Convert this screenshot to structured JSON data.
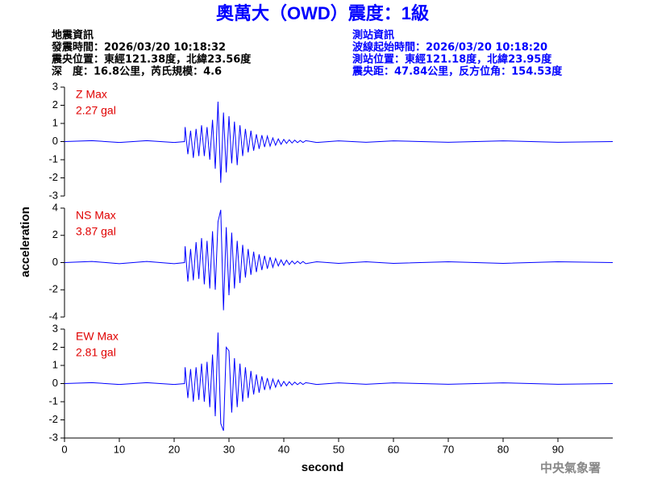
{
  "title": "奧萬大（OWD）震度：1級",
  "info_left": [
    "地震資訊",
    "發震時間：2026/03/20 10:18:32",
    "震央位置：東經121.38度，北緯23.56度",
    "深　度：16.8公里，芮氏規模：4.6"
  ],
  "info_right": [
    "測站資訊",
    "波線起始時間：2026/03/20 10:18:20",
    "測站位置：東經121.18度，北緯23.95度",
    "震央距：47.84公里，反方位角：154.53度"
  ],
  "y_label": "acceleration",
  "x_label": "second",
  "agency": "中央氣象署",
  "xlim": [
    0,
    100
  ],
  "xticks": [
    0,
    10,
    20,
    30,
    40,
    50,
    60,
    70,
    80,
    90
  ],
  "chart_data": [
    {
      "type": "line",
      "name": "Z Max",
      "max_label": "2.27 gal",
      "color": "#0000ff",
      "ylim": [
        -3,
        3
      ],
      "yticks": [
        -3,
        -2,
        -1,
        0,
        1,
        2,
        3
      ],
      "x": [
        0,
        5,
        10,
        15,
        20,
        21.9,
        22,
        22.5,
        23,
        23.5,
        24,
        24.5,
        25,
        25.5,
        26,
        26.5,
        27,
        27.5,
        28,
        28.5,
        29,
        29.5,
        30,
        30.5,
        31,
        31.5,
        32,
        32.5,
        33,
        33.5,
        34,
        34.5,
        35,
        35.5,
        36,
        36.5,
        37,
        37.5,
        38,
        38.5,
        39,
        39.5,
        40,
        40.5,
        41,
        41.5,
        42,
        42.5,
        43,
        43.5,
        44,
        46,
        50,
        55,
        60,
        70,
        80,
        90,
        100
      ],
      "values": [
        0,
        0.05,
        -0.05,
        0.05,
        -0.05,
        0,
        0.8,
        -0.7,
        0.6,
        -0.9,
        0.7,
        -0.8,
        0.9,
        -0.8,
        0.8,
        -1.0,
        1.2,
        -1.5,
        2.2,
        -2.27,
        1.6,
        -1.7,
        1.4,
        -1.2,
        1.1,
        -1.3,
        0.9,
        -0.8,
        0.7,
        -0.6,
        0.6,
        -0.5,
        0.4,
        -0.4,
        0.35,
        -0.3,
        0.3,
        -0.25,
        0.2,
        -0.2,
        0.15,
        -0.15,
        0.12,
        -0.1,
        0.1,
        -0.08,
        0.08,
        -0.06,
        0.06,
        -0.05,
        0.05,
        -0.05,
        0.04,
        -0.04,
        0.04,
        -0.04,
        0.04,
        -0.04,
        0
      ]
    },
    {
      "type": "line",
      "name": "NS Max",
      "max_label": "3.87 gal",
      "color": "#0000ff",
      "ylim": [
        -4,
        4
      ],
      "yticks": [
        -4,
        -2,
        0,
        2,
        4
      ],
      "x": [
        0,
        5,
        10,
        15,
        20,
        21.9,
        22,
        22.5,
        23,
        23.5,
        24,
        24.5,
        25,
        25.5,
        26,
        26.5,
        27,
        27.5,
        28,
        28.5,
        29,
        29.5,
        30,
        30.5,
        31,
        31.5,
        32,
        32.5,
        33,
        33.5,
        34,
        34.5,
        35,
        35.5,
        36,
        36.5,
        37,
        37.5,
        38,
        38.5,
        39,
        39.5,
        40,
        40.5,
        41,
        41.5,
        42,
        42.5,
        43,
        43.5,
        44,
        46,
        50,
        55,
        60,
        70,
        80,
        90,
        100
      ],
      "values": [
        0,
        0.08,
        -0.08,
        0.08,
        -0.08,
        0,
        1.2,
        -1.4,
        1.0,
        -1.3,
        1.5,
        -1.2,
        1.8,
        -1.6,
        1.6,
        -1.9,
        2.3,
        -2.0,
        3.0,
        3.87,
        -3.5,
        2.6,
        -2.4,
        2.2,
        -1.9,
        1.6,
        -1.5,
        1.3,
        -1.1,
        1.0,
        -0.9,
        0.8,
        -0.7,
        0.6,
        -0.55,
        0.5,
        -0.45,
        0.4,
        -0.35,
        0.3,
        -0.25,
        0.2,
        -0.2,
        0.18,
        -0.15,
        0.12,
        -0.1,
        0.1,
        -0.08,
        0.08,
        -0.08,
        0.06,
        -0.06,
        0.06,
        -0.06,
        0.06,
        -0.06,
        0.06,
        0
      ]
    },
    {
      "type": "line",
      "name": "EW Max",
      "max_label": "2.81 gal",
      "color": "#0000ff",
      "ylim": [
        -3,
        3
      ],
      "yticks": [
        -3,
        -2,
        -1,
        0,
        1,
        2,
        3
      ],
      "x": [
        0,
        5,
        10,
        15,
        20,
        21.9,
        22,
        22.5,
        23,
        23.5,
        24,
        24.5,
        25,
        25.5,
        26,
        26.5,
        27,
        27.5,
        28,
        28.5,
        29,
        29.5,
        30,
        30.5,
        31,
        31.5,
        32,
        32.5,
        33,
        33.5,
        34,
        34.5,
        35,
        35.5,
        36,
        36.5,
        37,
        37.5,
        38,
        38.5,
        39,
        39.5,
        40,
        40.5,
        41,
        41.5,
        42,
        42.5,
        43,
        43.5,
        44,
        46,
        50,
        55,
        60,
        70,
        80,
        90,
        100
      ],
      "values": [
        0,
        0.05,
        -0.05,
        0.05,
        -0.05,
        0,
        0.9,
        -0.8,
        0.8,
        -1.0,
        0.9,
        -0.9,
        1.1,
        -1.0,
        1.2,
        -1.3,
        1.6,
        -1.8,
        2.81,
        -2.2,
        -2.6,
        2.0,
        1.8,
        -1.6,
        1.4,
        -1.3,
        1.1,
        -1.0,
        0.9,
        -0.8,
        0.7,
        -0.6,
        0.5,
        -0.5,
        0.4,
        -0.35,
        0.3,
        -0.3,
        0.25,
        -0.2,
        0.2,
        -0.15,
        0.12,
        -0.12,
        0.1,
        -0.08,
        0.08,
        -0.06,
        0.06,
        -0.05,
        0.05,
        -0.05,
        0.04,
        -0.04,
        0.04,
        -0.04,
        0.04,
        -0.04,
        0
      ]
    }
  ]
}
